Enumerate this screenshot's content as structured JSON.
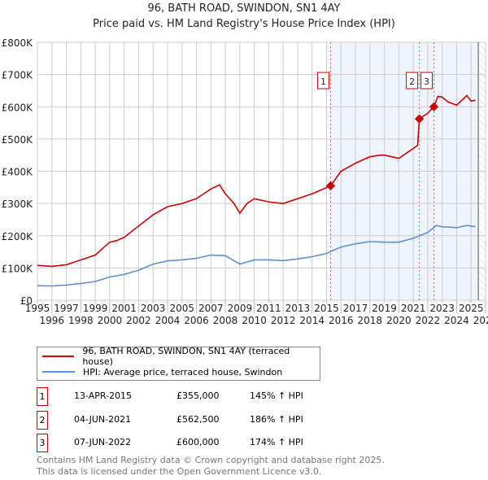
{
  "chart_data": {
    "type": "line",
    "title": "96, BATH ROAD, SWINDON, SN1 4AY",
    "subtitle": "Price paid vs. HM Land Registry's House Price Index (HPI)",
    "xlim": [
      1995,
      2026
    ],
    "ylim": [
      0,
      800000
    ],
    "x_ticks": [
      "1995",
      "1996",
      "1997",
      "1998",
      "1999",
      "2000",
      "2001",
      "2002",
      "2003",
      "2004",
      "2005",
      "2006",
      "2007",
      "2008",
      "2009",
      "2010",
      "2011",
      "2012",
      "2013",
      "2014",
      "2015",
      "2016",
      "2017",
      "2018",
      "2019",
      "2020",
      "2021",
      "2022",
      "2023",
      "2024",
      "2025",
      "2026"
    ],
    "y_ticks": [
      {
        "v": 0,
        "label": "£0"
      },
      {
        "v": 100000,
        "label": "£100K"
      },
      {
        "v": 200000,
        "label": "£200K"
      },
      {
        "v": 300000,
        "label": "£300K"
      },
      {
        "v": 400000,
        "label": "£400K"
      },
      {
        "v": 500000,
        "label": "£500K"
      },
      {
        "v": 600000,
        "label": "£600K"
      },
      {
        "v": 700000,
        "label": "£700K"
      },
      {
        "v": 800000,
        "label": "£800K"
      }
    ],
    "series": [
      {
        "name": "96, BATH ROAD, SWINDON, SN1 4AY (terraced house)",
        "color": "#cc0000",
        "x": [
          1995,
          1996,
          1997,
          1998,
          1999,
          2000,
          2000.5,
          2001,
          2002,
          2003,
          2004,
          2005,
          2006,
          2007,
          2007.6,
          2008,
          2008.6,
          2009,
          2009.5,
          2010,
          2011,
          2012,
          2013,
          2014,
          2015.28,
          2016,
          2017,
          2018,
          2018.7,
          2019,
          2020,
          2021.3,
          2021.42,
          2022,
          2022.43,
          2022.7,
          2023,
          2023.4,
          2024,
          2024.7,
          2025,
          2025.3
        ],
        "y": [
          108000,
          105000,
          110000,
          125000,
          140000,
          180000,
          185000,
          195000,
          230000,
          265000,
          290000,
          300000,
          315000,
          345000,
          358000,
          330000,
          300000,
          270000,
          300000,
          315000,
          305000,
          300000,
          315000,
          330000,
          355000,
          400000,
          425000,
          445000,
          450000,
          450000,
          440000,
          480000,
          562500,
          580000,
          600000,
          632000,
          630000,
          615000,
          605000,
          635000,
          618000,
          620000
        ]
      },
      {
        "name": "HPI: Average price, terraced house, Swindon",
        "color": "#5b8fd6",
        "x": [
          1995,
          1996,
          1997,
          1998,
          1999,
          2000,
          2001,
          2002,
          2003,
          2004,
          2005,
          2006,
          2007,
          2008,
          2009,
          2010,
          2011,
          2012,
          2013,
          2014,
          2015,
          2016,
          2017,
          2018,
          2019,
          2020,
          2021,
          2022,
          2022.6,
          2023,
          2024,
          2024.7,
          2025.3
        ],
        "y": [
          45000,
          44000,
          47000,
          52000,
          58000,
          72000,
          80000,
          93000,
          112000,
          122000,
          125000,
          130000,
          140000,
          138000,
          112000,
          125000,
          125000,
          123000,
          128000,
          135000,
          145000,
          165000,
          175000,
          182000,
          180000,
          180000,
          192000,
          210000,
          232000,
          228000,
          225000,
          232000,
          228000
        ]
      }
    ],
    "sales": [
      {
        "n": "1",
        "x": 2015.28,
        "y": 355000,
        "date": "13-APR-2015",
        "price": "£355,000",
        "hpi": "145% ↑ HPI"
      },
      {
        "n": "2",
        "x": 2021.42,
        "y": 562500,
        "date": "04-JUN-2021",
        "price": "£562,500",
        "hpi": "186% ↑ HPI"
      },
      {
        "n": "3",
        "x": 2022.43,
        "y": 600000,
        "date": "07-JUN-2022",
        "price": "£600,000",
        "hpi": "174% ↑ HPI"
      }
    ],
    "shade_from": 2015.28,
    "forecast_from": 2025.5
  },
  "footer": {
    "line1": "Contains HM Land Registry data © Crown copyright and database right 2025.",
    "line2": "This data is licensed under the Open Government Licence v3.0."
  }
}
